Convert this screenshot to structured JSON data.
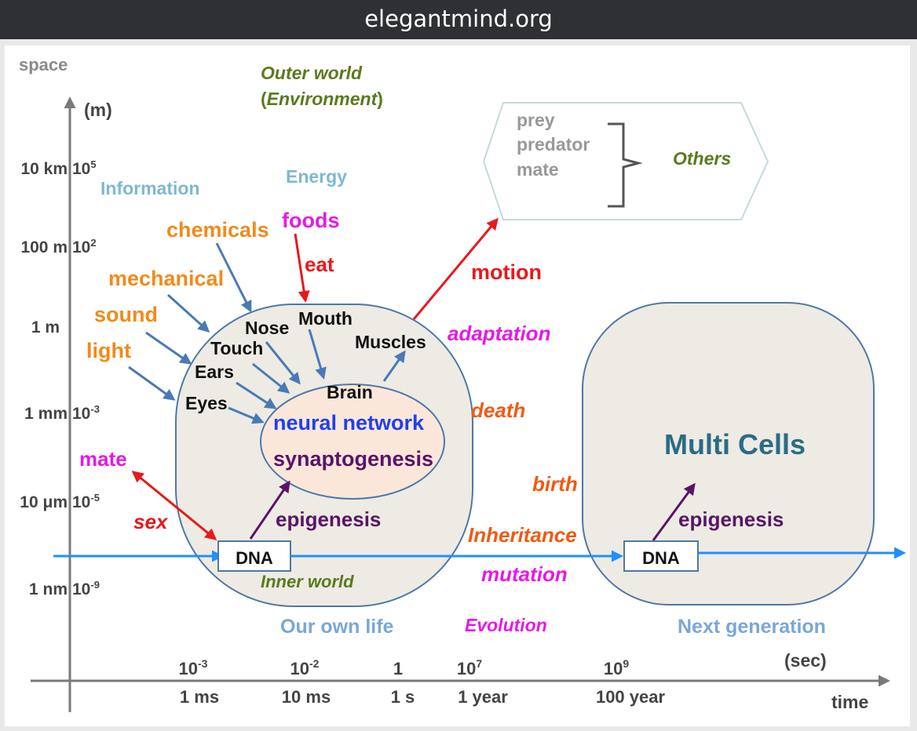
{
  "window": {
    "title": "elegantmind.org"
  },
  "axes": {
    "y_label": "space",
    "y_unit": "(m)",
    "x_label": "time",
    "x_unit": "(sec)",
    "y_ticks": [
      {
        "name": "10 km",
        "exp": "10",
        "sup": "5"
      },
      {
        "name": "100 m",
        "exp": "10",
        "sup": "2"
      },
      {
        "name": "1 m",
        "exp": "",
        "sup": ""
      },
      {
        "name": "1 mm",
        "exp": "10",
        "sup": "-3"
      },
      {
        "name": "10 μm",
        "exp": "10",
        "sup": "-5"
      },
      {
        "name": "1 nm",
        "exp": "10",
        "sup": "-9"
      }
    ],
    "x_ticks": [
      {
        "exp": "10",
        "sup": "-3",
        "name": "1 ms"
      },
      {
        "exp": "10",
        "sup": "-2",
        "name": "10 ms"
      },
      {
        "exp": "1",
        "sup": "",
        "name": "1 s"
      },
      {
        "exp": "10",
        "sup": "7",
        "name": "1 year"
      },
      {
        "exp": "10",
        "sup": "9",
        "name": "100 year"
      }
    ]
  },
  "labels": {
    "outer_world_1": "Outer world",
    "outer_world_2": "(Environment)",
    "env_pre": "(",
    "env_word": "Environment",
    "env_post": ")",
    "information": "Information",
    "energy": "Energy",
    "chemicals": "chemicals",
    "mechanical": "mechanical",
    "sound": "sound",
    "light": "light",
    "foods": "foods",
    "eat": "eat",
    "motion": "motion",
    "adaptation": "adaptation",
    "death": "death",
    "birth": "birth",
    "inheritance": "Inheritance",
    "mutation": "mutation",
    "evolution": "Evolution",
    "mate": "mate",
    "sex": "sex",
    "nose": "Nose",
    "mouth": "Mouth",
    "touch": "Touch",
    "ears": "Ears",
    "eyes": "Eyes",
    "muscles": "Muscles",
    "brain": "Brain",
    "neural_network": "neural network",
    "synaptogenesis": "synaptogenesis",
    "epigenesis_1": "epigenesis",
    "epigenesis_2": "epigenesis",
    "dna_1": "DNA",
    "dna_2": "DNA",
    "inner_world": "Inner world",
    "our_own_life": "Our own life",
    "next_generation": "Next generation",
    "multi_cells": "Multi Cells",
    "prey": "prey",
    "predator": "predator",
    "mate_other": "mate",
    "others": "Others"
  },
  "colors": {
    "info_blue": "#7fb8cf",
    "stim_orange": "#f28a1a",
    "red": "#e8191c",
    "magenta": "#e619e6",
    "purple": "#5a1466",
    "olive": "#5a7a1e",
    "body_fill": "#edebe3",
    "body_stroke": "#4f78a8",
    "brain_fill": "#fbe7da",
    "timeline_blue": "#1e90ff",
    "arrow_blue": "#4a7ab5"
  }
}
